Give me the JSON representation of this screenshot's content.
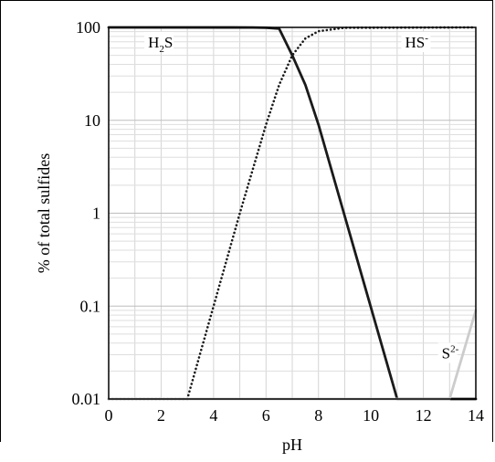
{
  "chart_data": {
    "type": "line",
    "xlabel": "pH",
    "ylabel": "% of total sulfides",
    "xlim": [
      0,
      14
    ],
    "ylim": [
      0.01,
      100
    ],
    "yscale": "log",
    "grid": true,
    "x_ticks": [
      "0",
      "2",
      "4",
      "6",
      "8",
      "10",
      "12",
      "14"
    ],
    "y_ticks": [
      "0.01",
      "0.1",
      "1",
      "10",
      "100"
    ],
    "series": [
      {
        "name": "H2S",
        "style": "solid",
        "color": "#1a1a1a",
        "x": [
          0,
          5.5,
          6,
          6.5,
          7,
          7.5,
          8,
          11,
          14
        ],
        "y": [
          100,
          99.7,
          99,
          97,
          50,
          24,
          9,
          0.01,
          0.01
        ]
      },
      {
        "name": "HS-",
        "style": "dotted",
        "color": "#1a1a1a",
        "x": [
          0,
          3,
          5,
          6,
          6.5,
          7,
          7.5,
          8,
          9,
          14
        ],
        "y": [
          0.01,
          0.01,
          1,
          9,
          24,
          50,
          76,
          91,
          99,
          100
        ]
      },
      {
        "name": "S2-",
        "style": "solid",
        "color": "#cccccc",
        "x": [
          0,
          13,
          14
        ],
        "y": [
          0.01,
          0.01,
          0.09
        ]
      }
    ],
    "annotations": [
      {
        "text": "H",
        "sub": "2",
        "after": "S",
        "x": 1.5,
        "y": 100
      },
      {
        "text": "HS",
        "sup": "-",
        "x": 11.3,
        "y": 100
      },
      {
        "text": "S",
        "sup": "2-",
        "x": 12.7,
        "y": 0.025
      }
    ]
  }
}
